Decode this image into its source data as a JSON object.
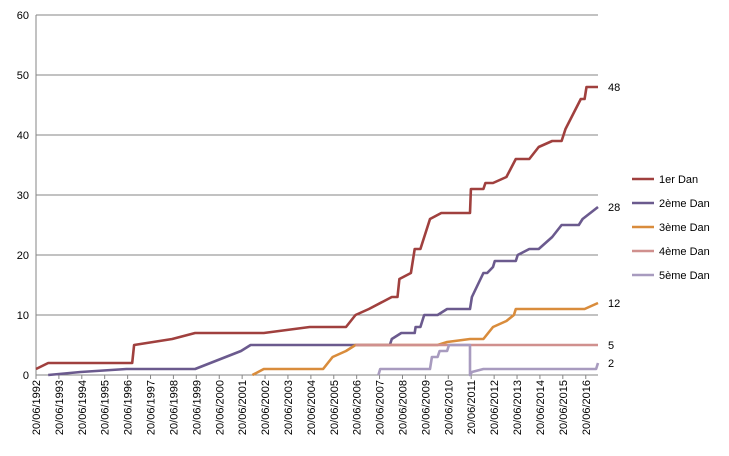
{
  "chart_data": {
    "type": "line",
    "title": "",
    "xlabel": "",
    "ylabel": "",
    "ylim": [
      0,
      60
    ],
    "yticks": [
      0,
      10,
      20,
      30,
      40,
      50,
      60
    ],
    "grid": "horizontal",
    "legend_position": "right",
    "x_ticks": [
      "20/06/1992",
      "20/06/1993",
      "20/06/1994",
      "20/06/1995",
      "20/06/1996",
      "20/06/1997",
      "20/06/1998",
      "20/06/1999",
      "20/06/2000",
      "20/06/2001",
      "20/06/2002",
      "20/06/2003",
      "20/06/2004",
      "20/06/2005",
      "20/06/2006",
      "20/06/2007",
      "20/06/2008",
      "20/06/2009",
      "20/06/2010",
      "20/06/2011",
      "20/06/2012",
      "20/06/2013",
      "20/06/2014",
      "20/06/2015",
      "20/06/2016"
    ],
    "series": [
      {
        "name": "1er Dan",
        "color": "#a0403e",
        "end_label": "48",
        "points": [
          [
            "1992-06-20",
            1
          ],
          [
            "1993-01-01",
            2
          ],
          [
            "1996-09-01",
            2
          ],
          [
            "1996-10-01",
            5
          ],
          [
            "1998-06-01",
            6
          ],
          [
            "1999-06-01",
            7
          ],
          [
            "2002-06-01",
            7
          ],
          [
            "2004-06-01",
            8
          ],
          [
            "2006-01-01",
            8
          ],
          [
            "2006-06-01",
            10
          ],
          [
            "2007-01-01",
            11
          ],
          [
            "2008-01-01",
            13
          ],
          [
            "2008-04-01",
            13
          ],
          [
            "2008-05-01",
            16
          ],
          [
            "2008-11-01",
            17
          ],
          [
            "2009-01-01",
            21
          ],
          [
            "2009-04-01",
            21
          ],
          [
            "2009-09-01",
            26
          ],
          [
            "2010-03-01",
            27
          ],
          [
            "2011-06-01",
            27
          ],
          [
            "2011-06-15",
            31
          ],
          [
            "2012-01-01",
            31
          ],
          [
            "2012-02-01",
            32
          ],
          [
            "2012-06-01",
            32
          ],
          [
            "2013-01-01",
            33
          ],
          [
            "2013-06-01",
            36
          ],
          [
            "2014-01-01",
            36
          ],
          [
            "2014-06-01",
            38
          ],
          [
            "2015-01-01",
            39
          ],
          [
            "2015-06-01",
            39
          ],
          [
            "2015-08-01",
            41
          ],
          [
            "2016-04-01",
            46
          ],
          [
            "2016-06-01",
            46
          ],
          [
            "2016-07-01",
            48
          ],
          [
            "2017-01-01",
            48
          ]
        ]
      },
      {
        "name": "2ème Dan",
        "color": "#6b5a8e",
        "end_label": "28",
        "points": [
          [
            "1993-01-01",
            0
          ],
          [
            "1994-06-01",
            0.5
          ],
          [
            "1996-06-01",
            1
          ],
          [
            "1999-06-01",
            1
          ],
          [
            "2001-06-01",
            4
          ],
          [
            "2001-11-01",
            5
          ],
          [
            "2007-12-01",
            5
          ],
          [
            "2008-01-01",
            6
          ],
          [
            "2008-06-01",
            7
          ],
          [
            "2009-01-01",
            7
          ],
          [
            "2009-01-15",
            8
          ],
          [
            "2009-04-01",
            8
          ],
          [
            "2009-06-01",
            10
          ],
          [
            "2010-01-01",
            10
          ],
          [
            "2010-06-01",
            11
          ],
          [
            "2011-06-01",
            11
          ],
          [
            "2011-07-01",
            13
          ],
          [
            "2012-01-01",
            17
          ],
          [
            "2012-03-01",
            17
          ],
          [
            "2012-06-01",
            18
          ],
          [
            "2012-07-01",
            19
          ],
          [
            "2013-06-01",
            19
          ],
          [
            "2013-07-01",
            20
          ],
          [
            "2014-01-01",
            21
          ],
          [
            "2014-06-01",
            21
          ],
          [
            "2015-01-01",
            23
          ],
          [
            "2015-06-01",
            25
          ],
          [
            "2016-03-01",
            25
          ],
          [
            "2016-05-01",
            26
          ],
          [
            "2017-01-01",
            28
          ]
        ]
      },
      {
        "name": "3ème Dan",
        "color": "#d98c3c",
        "end_label": "12",
        "points": [
          [
            "2001-12-01",
            0
          ],
          [
            "2002-06-01",
            1
          ],
          [
            "2005-01-01",
            1
          ],
          [
            "2005-06-01",
            3
          ],
          [
            "2006-01-01",
            4
          ],
          [
            "2006-06-01",
            5
          ],
          [
            "2010-01-01",
            5
          ],
          [
            "2010-06-01",
            5.5
          ],
          [
            "2011-06-01",
            6
          ],
          [
            "2012-01-01",
            6
          ],
          [
            "2012-06-01",
            8
          ],
          [
            "2013-01-01",
            9
          ],
          [
            "2013-05-01",
            10
          ],
          [
            "2013-06-01",
            11
          ],
          [
            "2016-06-01",
            11
          ],
          [
            "2017-01-01",
            12
          ]
        ]
      },
      {
        "name": "4ème Dan",
        "color": "#d0908e",
        "end_label": "5",
        "points": [
          [
            "2006-06-01",
            5
          ],
          [
            "2017-01-01",
            5
          ]
        ]
      },
      {
        "name": "5ème Dan",
        "color": "#a89bbf",
        "end_label": "2",
        "points": [
          [
            "2007-06-01",
            0
          ],
          [
            "2007-07-01",
            1
          ],
          [
            "2009-09-01",
            1
          ],
          [
            "2009-10-01",
            3
          ],
          [
            "2010-01-01",
            3
          ],
          [
            "2010-02-01",
            4
          ],
          [
            "2010-06-01",
            4
          ],
          [
            "2010-07-01",
            5
          ],
          [
            "2011-06-01",
            5
          ],
          [
            "2011-06-01",
            0
          ],
          [
            "2011-07-01",
            0.5
          ],
          [
            "2012-01-01",
            1
          ],
          [
            "2016-12-01",
            1
          ],
          [
            "2017-01-01",
            2
          ]
        ]
      }
    ]
  }
}
